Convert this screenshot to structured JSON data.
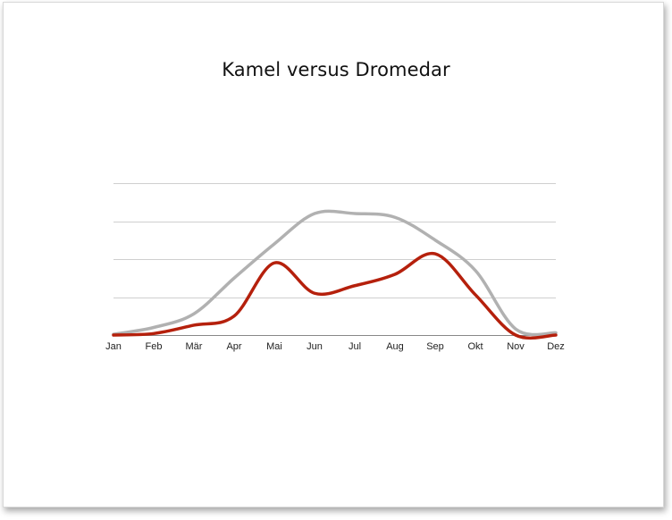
{
  "chart_data": {
    "type": "line",
    "title": "Kamel versus Dromedar",
    "categories": [
      "Jan",
      "Feb",
      "Mär",
      "Apr",
      "Mai",
      "Jun",
      "Jul",
      "Aug",
      "Sep",
      "Okt",
      "Nov",
      "Dez"
    ],
    "series": [
      {
        "color": "#b1b1b1",
        "values": [
          0.1,
          1.0,
          2.8,
          7.5,
          12.0,
          16.0,
          16.0,
          15.5,
          12.5,
          8.5,
          0.8,
          0.3
        ]
      },
      {
        "color": "#b5200c",
        "values": [
          0.0,
          0.2,
          1.3,
          2.5,
          9.5,
          5.5,
          6.5,
          8.0,
          10.7,
          5.3,
          0.0,
          0.0
        ]
      }
    ],
    "ylim": [
      0,
      20
    ],
    "ytick_count": 5,
    "grid": true,
    "legend": "none"
  },
  "colors": {
    "grid": "#cfcfcf",
    "axis": "#888888"
  }
}
